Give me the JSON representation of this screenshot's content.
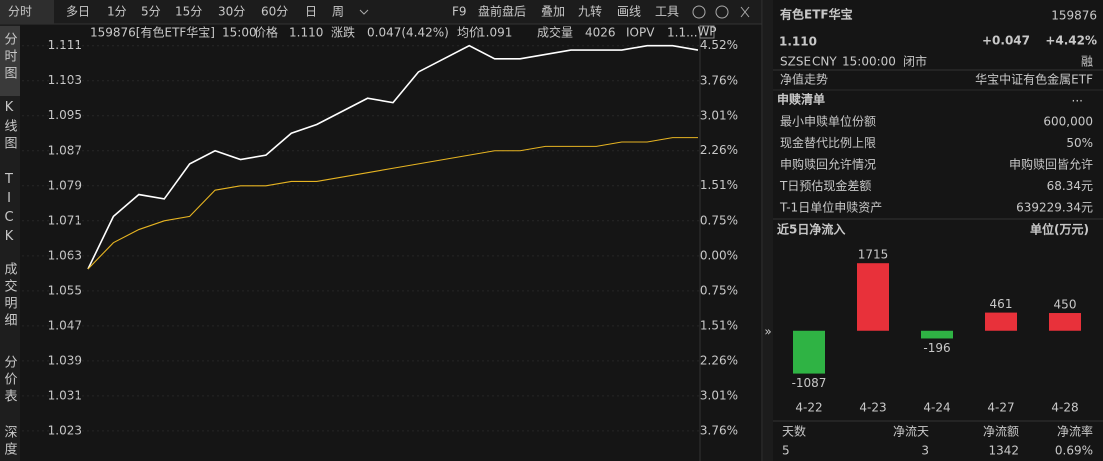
{
  "toolbar": {
    "periods": [
      "分时",
      "多日",
      "1分",
      "5分",
      "15分",
      "30分",
      "60分",
      "日",
      "周"
    ],
    "tools": [
      "F9",
      "盘前盘后",
      "叠加",
      "九转",
      "画线",
      "工具"
    ]
  },
  "side_tabs": [
    "分时图",
    "K线图",
    "TICK",
    "成交明细",
    "分价表",
    "深度"
  ],
  "quote_bar": {
    "code_name": "159876[有色ETF华宝]",
    "time": "15:00",
    "price_label": "价格",
    "price": "1.110",
    "change_label": "涨跌",
    "change": "0.047(4.42%)",
    "avg_label": "均价",
    "avg": "1.091",
    "volume_label": "成交量",
    "volume": "4026",
    "iopv_label": "IOPV",
    "iopv": "1.1..."
  },
  "wp_icon": "WP",
  "header": {
    "name": "有色ETF华宝",
    "code": "159876",
    "price": "1.110",
    "change": "+0.047",
    "change_pct": "+4.42%",
    "market": "SZSE",
    "currency": "CNY",
    "time": "15:00:00",
    "status": "闭市",
    "margin_tag": "融"
  },
  "nav_row": {
    "label": "净值走势",
    "value": "华宝中证有色金属ETF"
  },
  "subscription": {
    "title": "申赎清单",
    "more": "...",
    "rows": [
      [
        "最小申赎单位份额",
        "600,000"
      ],
      [
        "现金替代比例上限",
        "50%"
      ],
      [
        "申购赎回允许情况",
        "申购赎回皆允许"
      ],
      [
        "T日预估现金差额",
        "68.34元"
      ],
      [
        "T-1日单位申赎资产",
        "639229.34元"
      ]
    ]
  },
  "summary": {
    "headers": [
      "天数",
      "净流天",
      "净流额",
      "净流率"
    ],
    "values": [
      "5",
      "3",
      "1342",
      "0.69%"
    ]
  },
  "collapse_icon": "»",
  "chart_data": [
    {
      "type": "line",
      "ylim": [
        1.0175,
        1.1155
      ],
      "yticks": [
        1.111,
        1.103,
        1.095,
        1.087,
        1.079,
        1.071,
        1.063,
        1.055,
        1.047,
        1.039,
        1.031,
        1.023
      ],
      "y2lim": [
        -4.28,
        4.94
      ],
      "y2ticks": [
        {
          "value": 4.52,
          "label": "4.52%"
        },
        {
          "value": 3.76,
          "label": "3.76%"
        },
        {
          "value": 3.01,
          "label": "3.01%"
        },
        {
          "value": 2.26,
          "label": "2.26%"
        },
        {
          "value": 1.51,
          "label": "1.51%"
        },
        {
          "value": 0.75,
          "label": "0.75%"
        },
        {
          "value": 0,
          "label": "0.00%"
        },
        {
          "value": -0.75,
          "label": "0.75%"
        },
        {
          "value": -1.51,
          "label": "1.51%"
        },
        {
          "value": -2.26,
          "label": "2.26%"
        },
        {
          "value": -3.01,
          "label": "3.01%"
        },
        {
          "value": -3.76,
          "label": "3.76%"
        }
      ],
      "grid": true,
      "series": [
        {
          "color": "#ffffff",
          "values": [
            1.06,
            1.072,
            1.077,
            1.076,
            1.084,
            1.087,
            1.085,
            1.086,
            1.091,
            1.093,
            1.096,
            1.099,
            1.098,
            1.105,
            1.108,
            1.111,
            1.108,
            1.108,
            1.109,
            1.11,
            1.11,
            1.11,
            1.111,
            1.111,
            1.11
          ]
        },
        {
          "color": "#e6b422",
          "values": [
            1.06,
            1.066,
            1.069,
            1.071,
            1.072,
            1.078,
            1.079,
            1.079,
            1.08,
            1.08,
            1.081,
            1.082,
            1.083,
            1.084,
            1.085,
            1.086,
            1.087,
            1.087,
            1.088,
            1.088,
            1.088,
            1.089,
            1.089,
            1.09,
            1.09
          ]
        }
      ]
    },
    {
      "type": "bar",
      "title": "近5日净流入",
      "unit_label": "单位(万元)",
      "categories": [
        "4-22",
        "4-23",
        "4-24",
        "4-27",
        "4-28"
      ],
      "values": [
        -1087,
        1715,
        -196,
        461,
        450
      ],
      "ylim": [
        -1250,
        2050
      ],
      "up_color": "#e8313a",
      "down_color": "#2fb344"
    }
  ]
}
